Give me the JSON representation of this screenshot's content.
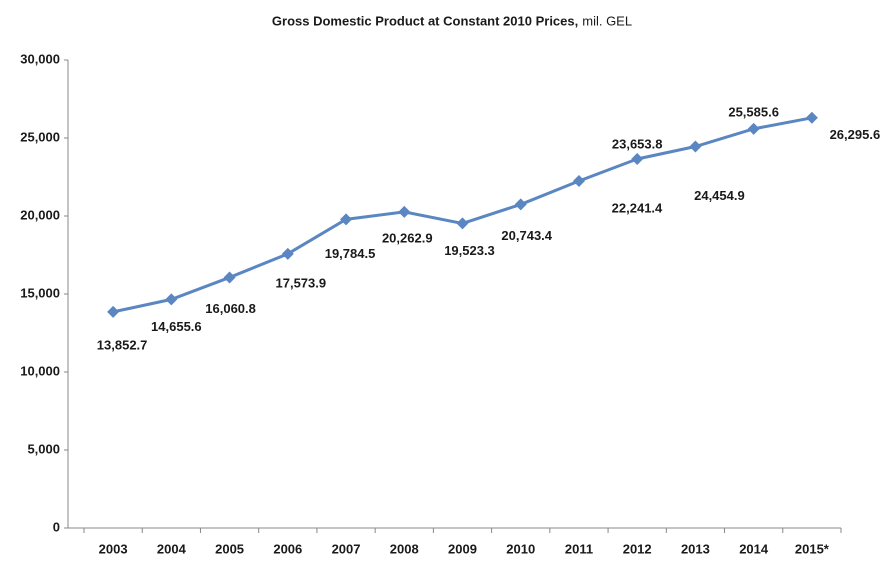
{
  "chart_data": {
    "type": "line",
    "title": "Gross Domestic Product at Constant 2010 Prices,",
    "subtitle": "mil. GEL",
    "categories": [
      "2003",
      "2004",
      "2005",
      "2006",
      "2007",
      "2008",
      "2009",
      "2010",
      "2011",
      "2012",
      "2013",
      "2014",
      "2015*"
    ],
    "series": [
      {
        "name": "GDP",
        "color": "#5a86c2",
        "values": [
          13852.7,
          14655.6,
          16060.8,
          17573.9,
          19784.5,
          20262.9,
          19523.3,
          20743.4,
          22241.4,
          23653.8,
          24454.9,
          25585.6,
          26295.6
        ],
        "value_labels": [
          "13,852.7",
          "14,655.6",
          "16,060.8",
          "17,573.9",
          "19,784.5",
          "20,262.9",
          "19,523.3",
          "20,743.4",
          "22,241.4",
          "23,653.8",
          "24,454.9",
          "25,585.6",
          "26,295.6"
        ]
      }
    ],
    "ylim": [
      0,
      30000
    ],
    "yticks": [
      0,
      {
        "value": 5000,
        "label": "5,000"
      },
      {
        "value": 10000,
        "label": "10,000"
      },
      {
        "value": 15000,
        "label": "15,000"
      },
      {
        "value": 20000,
        "label": "20,000"
      },
      {
        "value": 25000,
        "label": "25,000"
      },
      {
        "value": 30000,
        "label": "30,000"
      }
    ],
    "grid": false,
    "legend": false
  }
}
